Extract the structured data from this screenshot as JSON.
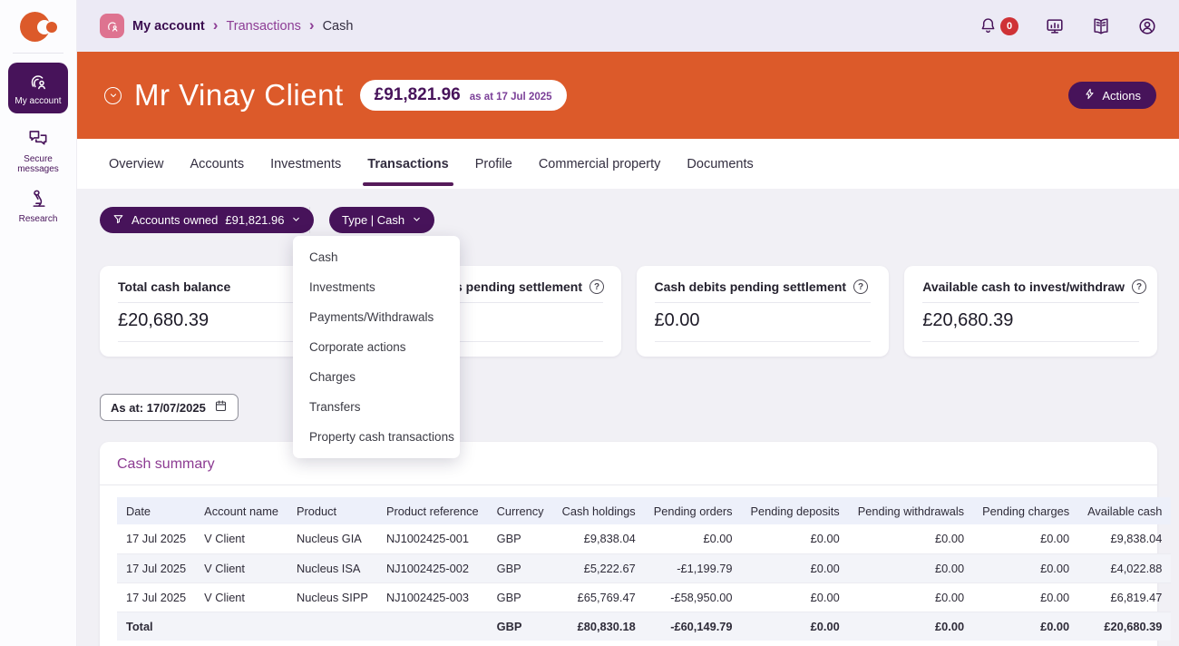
{
  "colors": {
    "orange": "#DC5A2A",
    "purple": "#47135A",
    "magenta_heading": "#8C3B92",
    "link_purple": "#8D3D95",
    "badge_red": "#CF3236",
    "breadcrumb_icon_pink": "#DE7390",
    "table_header_bg": "#EDF0FA"
  },
  "glyphs": {
    "info": "?",
    "crumb_sep": "›"
  },
  "sidebar": {
    "items": [
      {
        "label": "My account",
        "icon": "fingerprint-user-icon",
        "active": true
      },
      {
        "label": "Secure messages",
        "icon": "chat-bubbles-icon",
        "active": false
      },
      {
        "label": "Research",
        "icon": "microscope-icon",
        "active": false
      }
    ]
  },
  "topbar": {
    "breadcrumb": {
      "items": [
        "My account",
        "Transactions",
        "Cash"
      ]
    },
    "notification_count": "0"
  },
  "header": {
    "client_name": "Mr Vinay Client",
    "balance": "£91,821.96",
    "as_at_note": "as at 17 Jul 2025",
    "actions_label": "Actions"
  },
  "tabs": {
    "items": [
      "Overview",
      "Accounts",
      "Investments",
      "Transactions",
      "Profile",
      "Commercial property",
      "Documents"
    ],
    "active": "Transactions"
  },
  "filters": {
    "accounts_owned_label": "Accounts owned",
    "accounts_owned_value": "£91,821.96",
    "type_label": "Type | Cash"
  },
  "type_menu": {
    "items": [
      "Cash",
      "Investments",
      "Payments/Withdrawals",
      "Corporate actions",
      "Charges",
      "Transfers",
      "Property cash transactions"
    ]
  },
  "summary_cards": [
    {
      "title": "Total cash balance",
      "value": "£20,680.39"
    },
    {
      "title": "Cash credits pending settlement",
      "value": ""
    },
    {
      "title": "Cash debits pending settlement",
      "value": "£0.00"
    },
    {
      "title": "Available cash to invest/withdraw",
      "value": "£20,680.39"
    }
  ],
  "as_at_field": {
    "value": "As at: 17/07/2025"
  },
  "cash_summary": {
    "title": "Cash summary",
    "columns": [
      "Date",
      "Account name",
      "Product",
      "Product reference",
      "Currency",
      "Cash holdings",
      "Pending orders",
      "Pending deposits",
      "Pending withdrawals",
      "Pending charges",
      "Available cash"
    ],
    "rows": [
      [
        "17 Jul 2025",
        "V Client",
        "Nucleus GIA",
        "NJ1002425-001",
        "GBP",
        "£9,838.04",
        "£0.00",
        "£0.00",
        "£0.00",
        "£0.00",
        "£9,838.04"
      ],
      [
        "17 Jul 2025",
        "V Client",
        "Nucleus ISA",
        "NJ1002425-002",
        "GBP",
        "£5,222.67",
        "-£1,199.79",
        "£0.00",
        "£0.00",
        "£0.00",
        "£4,022.88"
      ],
      [
        "17 Jul 2025",
        "V Client",
        "Nucleus SIPP",
        "NJ1002425-003",
        "GBP",
        "£65,769.47",
        "-£58,950.00",
        "£0.00",
        "£0.00",
        "£0.00",
        "£6,819.47"
      ]
    ],
    "total_row": [
      "Total",
      "",
      "",
      "",
      "GBP",
      "£80,830.18",
      "-£60,149.79",
      "£0.00",
      "£0.00",
      "£0.00",
      "£20,680.39"
    ]
  }
}
